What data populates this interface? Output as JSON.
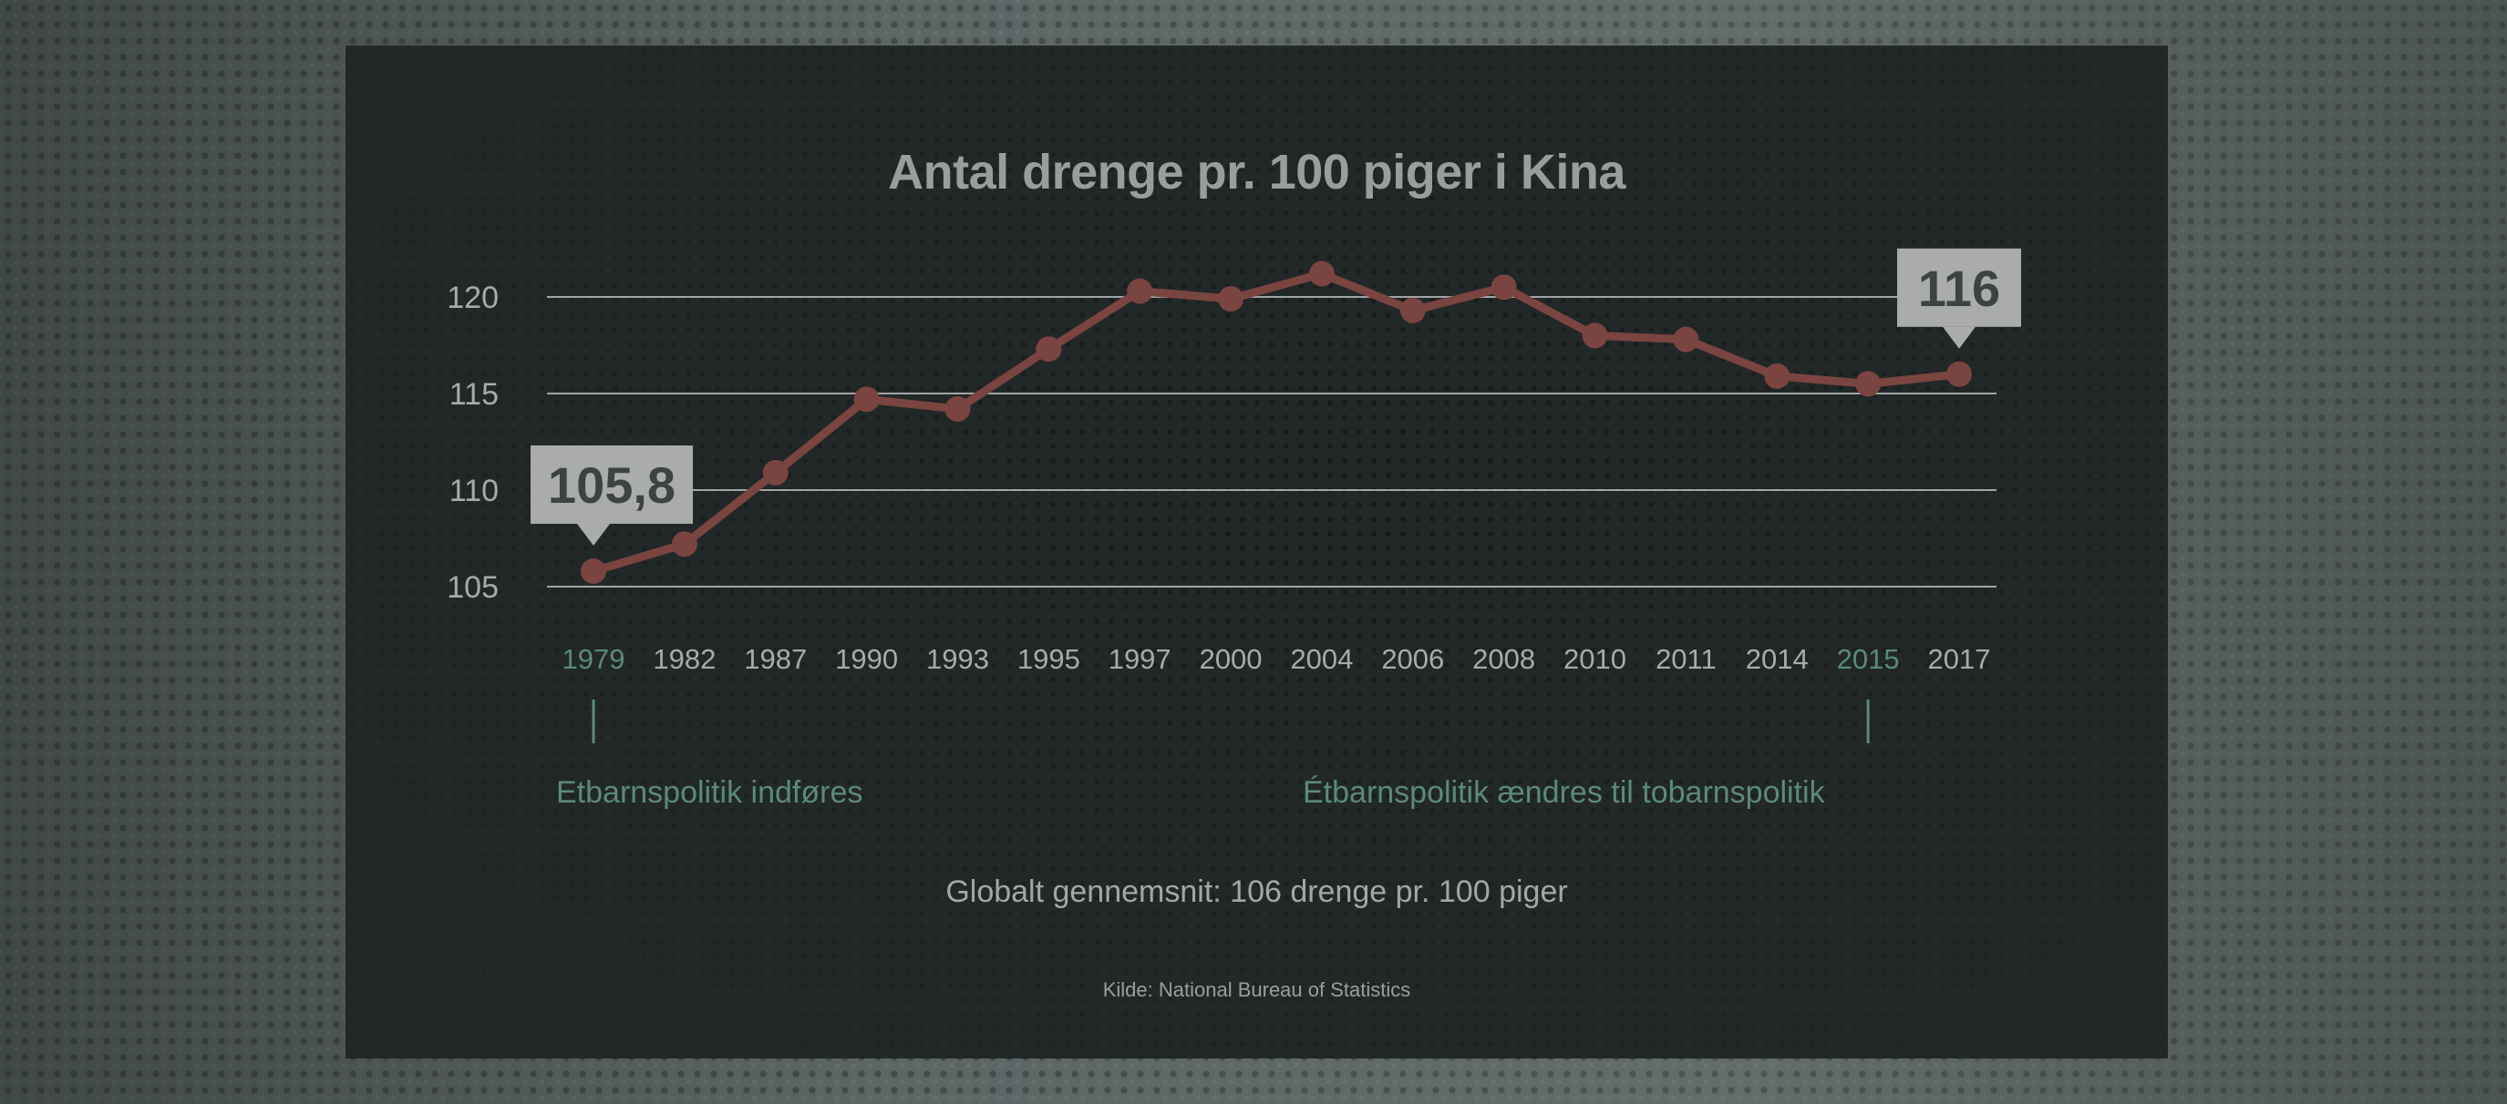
{
  "chart_data": {
    "type": "line",
    "title": "Antal drenge pr. 100 piger i Kina",
    "categories": [
      "1979",
      "1982",
      "1987",
      "1990",
      "1993",
      "1995",
      "1997",
      "2000",
      "2004",
      "2006",
      "2008",
      "2010",
      "2011",
      "2014",
      "2015",
      "2017"
    ],
    "values": [
      105.8,
      107.2,
      110.9,
      114.7,
      114.2,
      117.3,
      120.3,
      119.9,
      121.2,
      119.3,
      120.5,
      118.0,
      117.8,
      115.9,
      115.5,
      116.0
    ],
    "ylim": [
      105,
      120
    ],
    "yticks": [
      "105",
      "110",
      "115",
      "120"
    ],
    "grid": true,
    "highlighted_categories": [
      "1979",
      "2015"
    ],
    "callouts": [
      {
        "category": "1979",
        "label": "105,8"
      },
      {
        "category": "2017",
        "label": "116"
      }
    ],
    "annotations": [
      {
        "category": "1979",
        "text": "Etbarnspolitik indføres"
      },
      {
        "category": "2015",
        "text": "Étbarnspolitik ændres til tobarnspolitik"
      }
    ],
    "footnote": "Globalt gennemsnit: 106 drenge pr. 100 piger",
    "source": "Kilde: National Bureau of Statistics"
  },
  "colors": {
    "line": "#7a4440",
    "marker": "#7a4440",
    "grid": "#b9bcbb",
    "highlight": "#5b8a7a",
    "tick_label": "#a8abaa",
    "callout_bg": "#a9acab",
    "callout_text": "#3d4242",
    "panel_bg": "#222728"
  }
}
